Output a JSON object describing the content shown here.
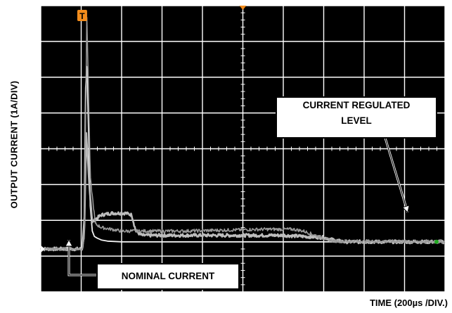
{
  "chart_data": {
    "type": "line",
    "title": "",
    "xlabel": "TIME (200µs /DIV.)",
    "ylabel": "OUTPUT CURRENT (1A/DIV)",
    "x_unit": "µs",
    "y_unit": "A",
    "xlim": [
      0,
      2000
    ],
    "ylim": [
      -1.2,
      6.8
    ],
    "divisions": {
      "x": 10,
      "y": 8
    },
    "grid": true,
    "trigger_marker": "T",
    "series": [
      {
        "style": "solid",
        "x": [
          0,
          205,
          215,
          222,
          228,
          235,
          245,
          255,
          265,
          280,
          300,
          330,
          400,
          500,
          800,
          1200,
          1600,
          2000
        ],
        "y": [
          0,
          0,
          0.9,
          4.5,
          5.1,
          3.6,
          1.2,
          0.5,
          0.35,
          0.3,
          0.25,
          0.22,
          0.2,
          0.2,
          0.2,
          0.2,
          0.2,
          0.2
        ]
      },
      {
        "style": "noisy",
        "x": [
          0,
          205,
          215,
          225,
          240,
          255,
          275,
          300,
          350,
          420,
          450,
          470,
          500,
          800,
          1200,
          1400,
          1450,
          1500,
          2000
        ],
        "y": [
          0,
          0,
          0.4,
          3.2,
          1.8,
          0.75,
          0.85,
          0.95,
          1.0,
          1.0,
          0.95,
          0.5,
          0.38,
          0.38,
          0.38,
          0.32,
          0.25,
          0.2,
          0.2
        ]
      },
      {
        "style": "noisy",
        "x": [
          0,
          205,
          215,
          228,
          245,
          270,
          300,
          350,
          400,
          470,
          700,
          1100,
          1250,
          1300,
          1350,
          1400,
          1450,
          2000
        ],
        "y": [
          0,
          0,
          0.35,
          6.5,
          2.0,
          0.7,
          0.6,
          0.55,
          0.5,
          0.5,
          0.5,
          0.55,
          0.55,
          0.5,
          0.4,
          0.3,
          0.22,
          0.2
        ]
      }
    ],
    "nominal_level": 0,
    "annotations": {
      "current_regulated": [
        "CURRENT REGULATED",
        "LEVEL"
      ],
      "nominal": "NOMINAL CURRENT"
    }
  }
}
